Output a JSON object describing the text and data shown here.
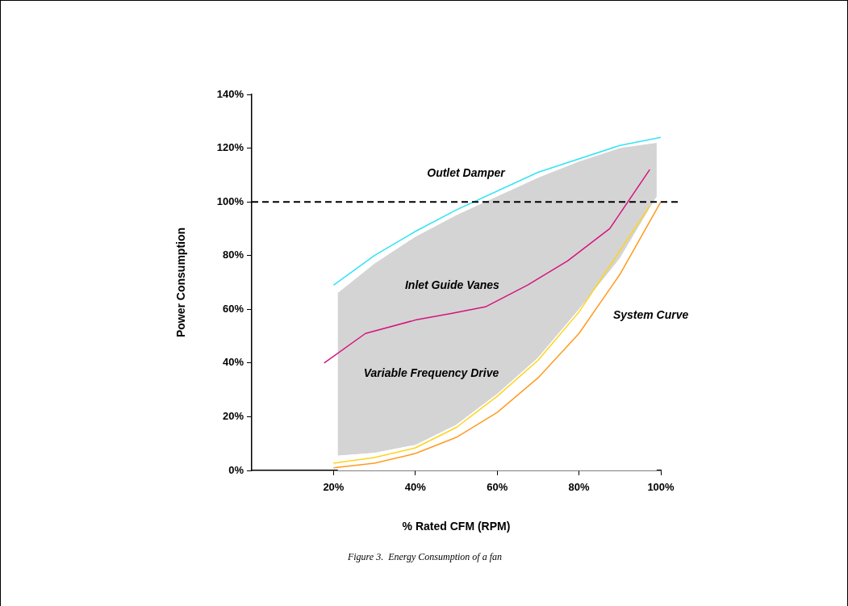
{
  "chart_data": {
    "type": "line",
    "xlabel": "% Rated CFM (RPM)",
    "ylabel": "Power Consumption",
    "xlim": [
      0,
      100
    ],
    "xticks": [
      {
        "value": 20,
        "label": "20%"
      },
      {
        "value": 40,
        "label": "40%"
      },
      {
        "value": 60,
        "label": "60%"
      },
      {
        "value": 80,
        "label": "80%"
      },
      {
        "value": 100,
        "label": "100%"
      }
    ],
    "ylim": [
      0,
      140
    ],
    "yticks": [
      {
        "value": 0,
        "label": "0%"
      },
      {
        "value": 20,
        "label": "20%"
      },
      {
        "value": 40,
        "label": "40%"
      },
      {
        "value": 60,
        "label": "60%"
      },
      {
        "value": 80,
        "label": "80%"
      },
      {
        "value": 100,
        "label": "100%"
      },
      {
        "value": 120,
        "label": "120%"
      },
      {
        "value": 140,
        "label": "140%"
      }
    ],
    "grid": false,
    "legend": false,
    "stacked": true,
    "marker": "none",
    "line_style": "solid",
    "series": [
      {
        "type": "area",
        "color": "#ffffff",
        "x": [
          21,
          30,
          40,
          50,
          60,
          70,
          80,
          90,
          99
        ],
        "values": [
          5.5,
          6.5,
          9.5,
          17,
          28.5,
          42,
          60,
          79,
          102
        ]
      },
      {
        "type": "area",
        "color": "#d4d4d4",
        "x": [
          21,
          30,
          40,
          50,
          60,
          70,
          80,
          90,
          99
        ],
        "values": [
          60.5,
          70.5,
          77.5,
          78,
          73.5,
          67,
          55,
          41,
          20
        ]
      },
      {
        "name": "Outlet Damper",
        "color": "#33e3f5",
        "x": [
          20,
          30,
          40,
          50,
          70,
          90,
          100
        ],
        "values": [
          69,
          80,
          89,
          97,
          111,
          121,
          124
        ]
      },
      {
        "name": "Inlet Guide Vanes",
        "color": "#d6137f",
        "x": [
          17.7,
          27.8,
          40,
          49,
          57.3,
          67.4,
          77.2,
          87.5,
          97.3
        ],
        "values": [
          40,
          51,
          56,
          58.5,
          61,
          69,
          78,
          90,
          112
        ]
      },
      {
        "name": "Variable Frequency Drive",
        "color": "#ffd31a",
        "x": [
          20,
          30,
          40,
          50,
          60,
          70,
          80,
          97.3
        ],
        "values": [
          2.7,
          4.8,
          8.4,
          16,
          27.6,
          41,
          59,
          98.5
        ]
      },
      {
        "name": "System Curve",
        "color": "#ff9a1f",
        "x": [
          20,
          30,
          40,
          50,
          60,
          70,
          80,
          90,
          100
        ],
        "values": [
          1,
          2.7,
          6.3,
          12.3,
          21.6,
          34.5,
          51,
          73,
          100
        ]
      }
    ],
    "ref_lines": [
      {
        "axis": "y",
        "value": 100,
        "color": "#000000",
        "line_style": "dashed"
      }
    ],
    "annotations": [
      "Figure 3.  Energy Consumption of a fan"
    ]
  }
}
